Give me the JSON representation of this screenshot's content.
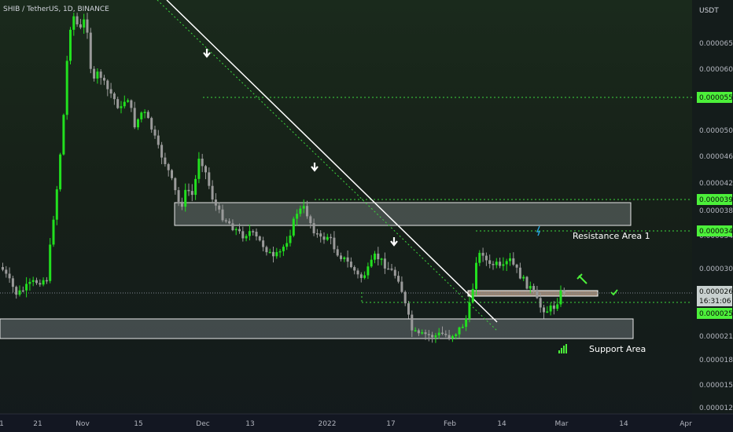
{
  "header": {
    "title": "SHIB / TetherUS, 1D, BINANCE",
    "unit": "USDT"
  },
  "colors": {
    "up": "#22e01f",
    "down": "#9a9a9a",
    "level": "#3dd63d",
    "trendline": "#ffffff",
    "zone_fill": "rgba(200,210,215,0.28)",
    "price_tag": "#4cf03a",
    "current_tag": "#c9d1d0"
  },
  "chart_data": {
    "type": "candlestick",
    "y_axis_ticks": [
      "0.00006500",
      "0.00006000",
      "0.00005500",
      "0.00005000",
      "0.00004600",
      "0.00004200",
      "0.00003800",
      "0.00003400",
      "0.00003000",
      "0.00002600",
      "0.00002100",
      "0.00001800",
      "0.00001500",
      "0.00001240"
    ],
    "x_axis_ticks": [
      "1",
      "21",
      "Nov",
      "15",
      "Dec",
      "13",
      "2022",
      "17",
      "Feb",
      "14",
      "Mar",
      "14",
      "Apr"
    ],
    "price_tags": [
      {
        "label": "0.00005531",
        "kind": "level"
      },
      {
        "label": "0.00003961",
        "kind": "level"
      },
      {
        "label": "0.00003489",
        "kind": "level"
      },
      {
        "label": "0.00002656",
        "kind": "current"
      },
      {
        "label": "16:31:06",
        "kind": "countdown"
      },
      {
        "label": "0.00002522",
        "kind": "level"
      }
    ],
    "zones": [
      {
        "name": "Resistance Area 1",
        "price_low": 3.5e-05,
        "price_high": 3.95e-05
      },
      {
        "name": "Support Area",
        "price_low": 2.08e-05,
        "price_high": 2.36e-05
      }
    ],
    "annotations": [
      "Resistance Area 1",
      "Support Area"
    ]
  }
}
